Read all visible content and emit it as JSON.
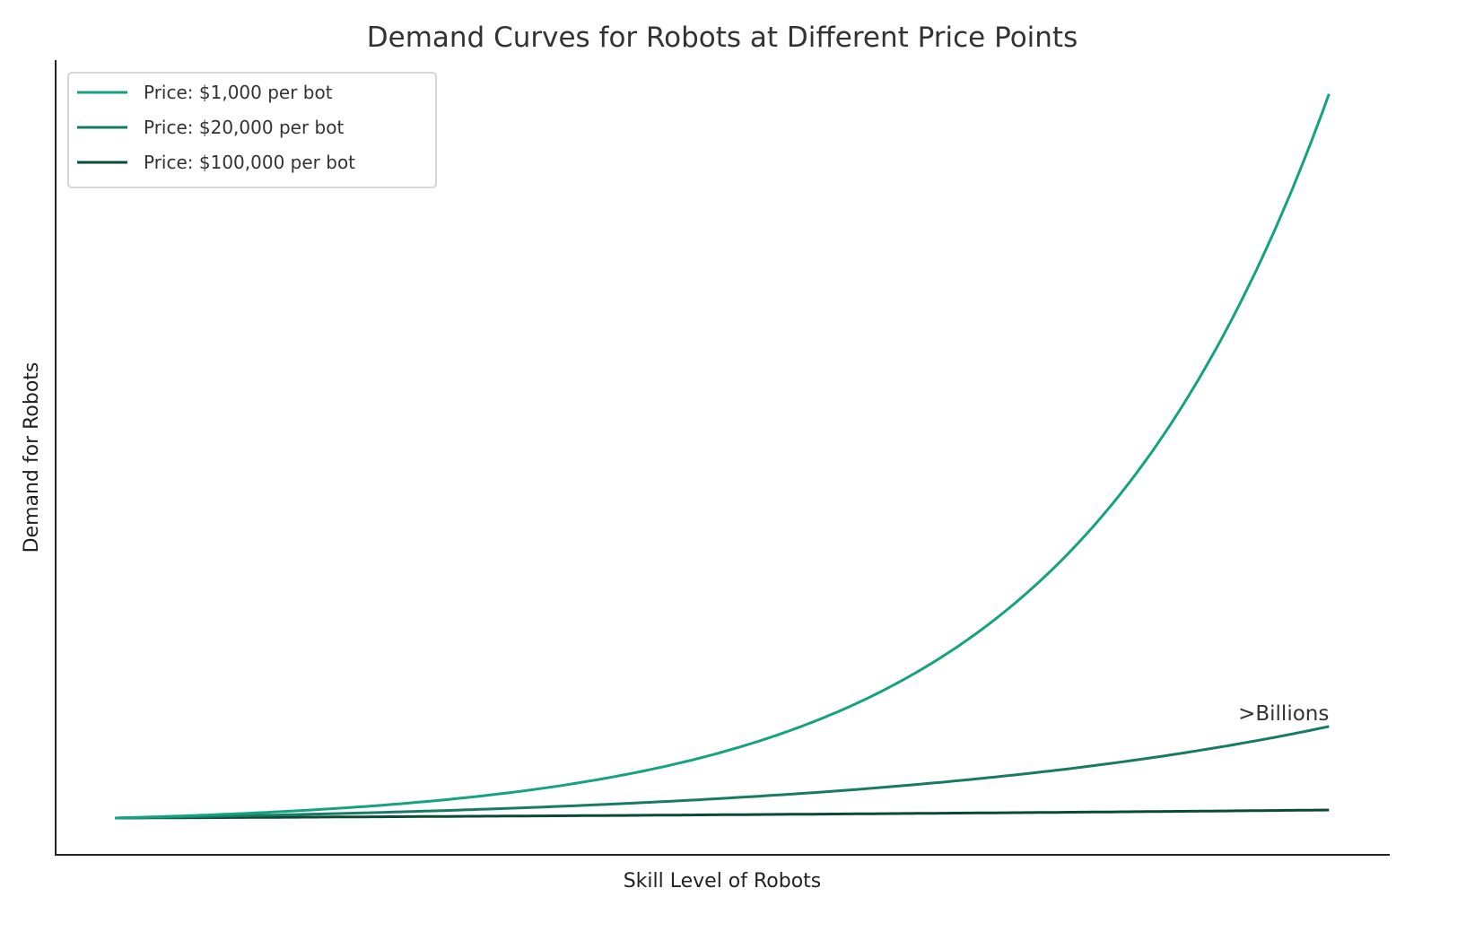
{
  "chart_data": {
    "type": "line",
    "title": "Demand Curves for Robots at Different Price Points",
    "xlabel": "Skill Level of Robots",
    "ylabel": "Demand for Robots",
    "xlim": [
      -0.49,
      10.5
    ],
    "ylim": [
      -4.0,
      104.1
    ],
    "grid": false,
    "ticks_shown": false,
    "legend_position": "top-left",
    "x": [
      0,
      1,
      2,
      3,
      4,
      5,
      6,
      7,
      8,
      9,
      10
    ],
    "series": [
      {
        "name": "Price: $1,000 per bot",
        "color": "#13a37f",
        "values": [
          1,
          1.58,
          2.51,
          3.97,
          6.3,
          9.97,
          15.8,
          25.0,
          39.6,
          62.8,
          99.5
        ]
      },
      {
        "name": "Price: $20,000 per bot",
        "color": "#177b63",
        "values": [
          1,
          1.3,
          1.68,
          2.18,
          2.83,
          3.67,
          4.76,
          6.17,
          8.0,
          10.38,
          13.46
        ]
      },
      {
        "name": "Price: $100,000 per bot",
        "color": "#0b4a37",
        "values": [
          1,
          1.077,
          1.16,
          1.25,
          1.34,
          1.45,
          1.56,
          1.68,
          1.81,
          1.95,
          2.1
        ]
      }
    ],
    "annotations": [
      {
        "text": ">Billions",
        "x": 10,
        "y": 13.46
      }
    ]
  }
}
